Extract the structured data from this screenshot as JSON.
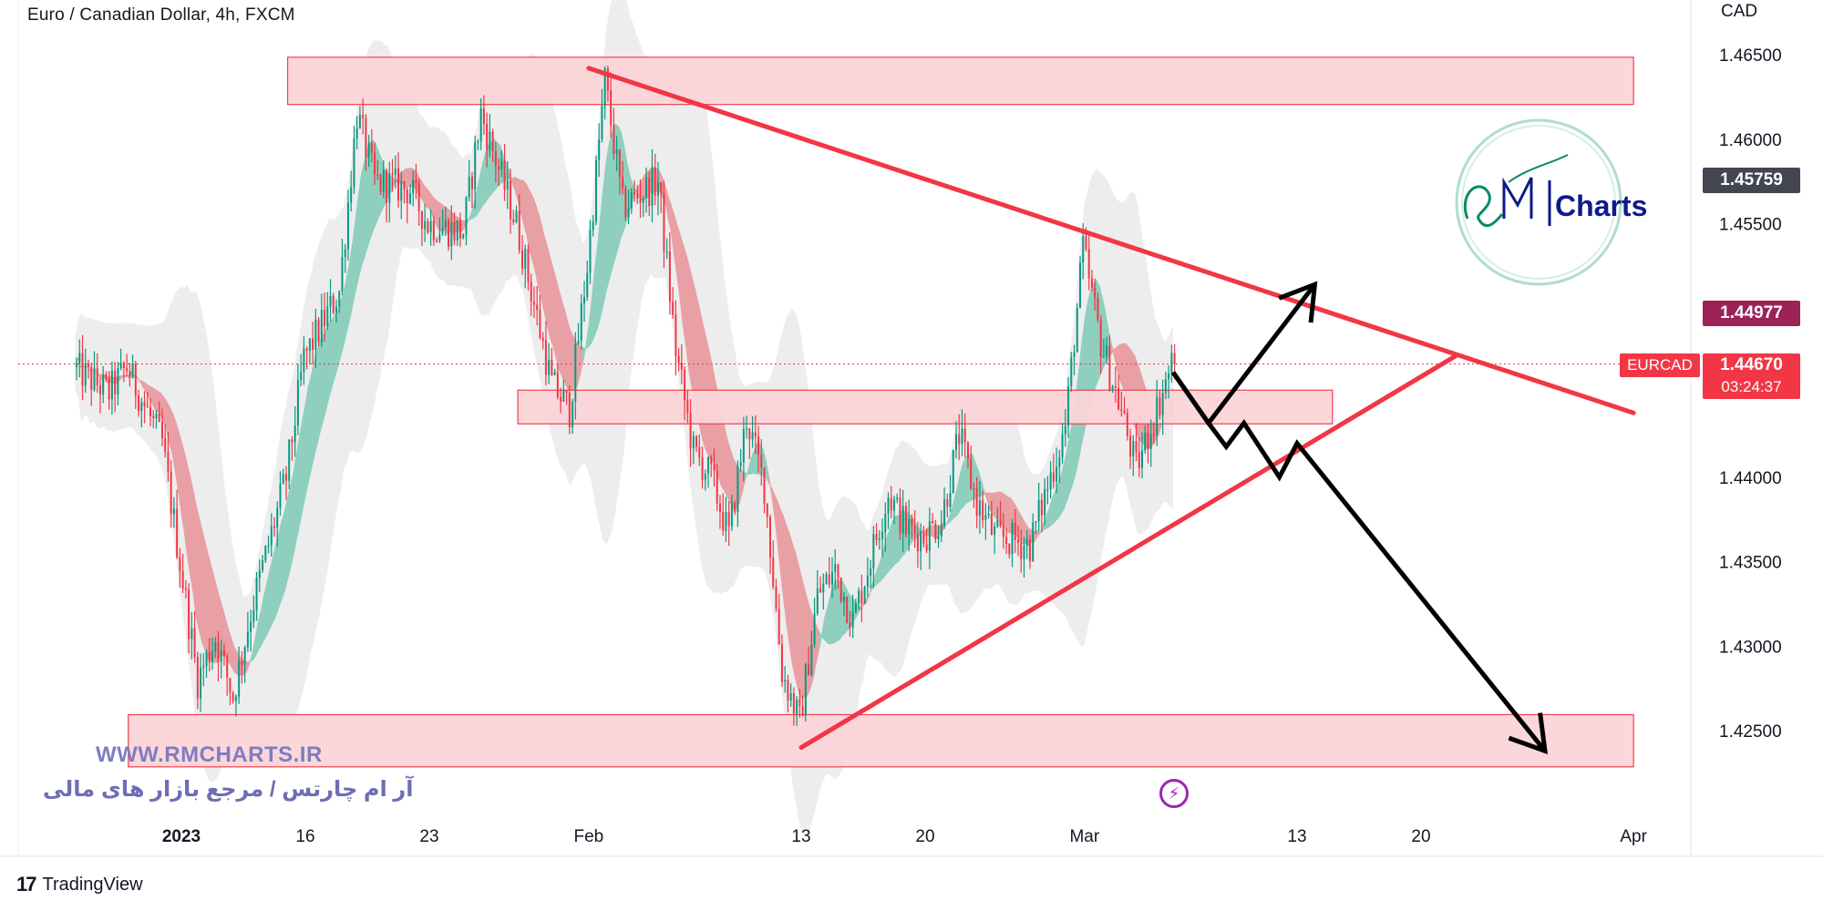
{
  "header": {
    "symbol_title": "Euro / Canadian Dollar, 4h, FXCM",
    "currency": "CAD"
  },
  "price_badges": {
    "top_value": "1.45759",
    "mid_value": "1.44977",
    "symbol": "EURCAD",
    "current_value": "1.44670",
    "countdown": "03:24:37"
  },
  "colors": {
    "bull": "#089981",
    "bear": "#f23645",
    "zone_fill": "#fbd5d9",
    "zone_stroke": "#f23645",
    "trendline": "#f23645",
    "arrow": "#000000",
    "ribbon_up": "#8fcfbe",
    "ribbon_down": "#e8a0a4",
    "band": "#e6e6e6"
  },
  "watermark": {
    "url": "WWW.RMCHARTS.IR",
    "persian": "آر ام چارتس / مرجع بازار های مالی",
    "logo_text": "Charts"
  },
  "footer": {
    "brand": "TradingView",
    "brand_mark": "17"
  },
  "icons": {
    "flash": "lightning-bolt-icon",
    "tradingview": "tradingview-logo-icon"
  },
  "chart_data": {
    "type": "candlestick",
    "title": "Euro / Canadian Dollar, 4h, FXCM",
    "y_unit": "CAD",
    "ylim": [
      1.4215,
      1.4682
    ],
    "y_ticks": [
      "1.46500",
      "1.46000",
      "1.45500",
      "1.45000",
      "1.44500",
      "1.44000",
      "1.43500",
      "1.43000",
      "1.42500"
    ],
    "y_tick_values": [
      1.465,
      1.46,
      1.455,
      1.45,
      1.445,
      1.44,
      1.435,
      1.43,
      1.425
    ],
    "x_ticks": [
      "2023",
      "16",
      "23",
      "Feb",
      "13",
      "20",
      "Mar",
      "13",
      "20",
      "Apr"
    ],
    "x_tick_dates": [
      "2023-01-09",
      "2023-01-16",
      "2023-01-23",
      "2023-02-01",
      "2023-02-13",
      "2023-02-20",
      "2023-03-01",
      "2023-03-13",
      "2023-03-20",
      "2023-04-01"
    ],
    "x_range": [
      "2023-01-03",
      "2023-04-01"
    ],
    "candles_range": [
      "2023-01-03",
      "2023-03-06"
    ],
    "current_price": 1.4467,
    "price_path": [
      [
        "2023-01-03",
        1.4465
      ],
      [
        "2023-01-05",
        1.445
      ],
      [
        "2023-01-06",
        1.4465
      ],
      [
        "2023-01-08",
        1.442
      ],
      [
        "2023-01-10",
        1.428
      ],
      [
        "2023-01-11",
        1.4305
      ],
      [
        "2023-01-12",
        1.427
      ],
      [
        "2023-01-13",
        1.432
      ],
      [
        "2023-01-15",
        1.44
      ],
      [
        "2023-01-16",
        1.447
      ],
      [
        "2023-01-18",
        1.451
      ],
      [
        "2023-01-19",
        1.4615
      ],
      [
        "2023-01-20",
        1.4575
      ],
      [
        "2023-01-22",
        1.457
      ],
      [
        "2023-01-23",
        1.455
      ],
      [
        "2023-01-25",
        1.4545
      ],
      [
        "2023-01-26",
        1.4615
      ],
      [
        "2023-01-28",
        1.455
      ],
      [
        "2023-01-30",
        1.4455
      ],
      [
        "2023-01-31",
        1.444
      ],
      [
        "2023-02-01",
        1.4525
      ],
      [
        "2023-02-02",
        1.4635
      ],
      [
        "2023-02-03",
        1.456
      ],
      [
        "2023-02-05",
        1.4575
      ],
      [
        "2023-02-06",
        1.4475
      ],
      [
        "2023-02-07",
        1.4415
      ],
      [
        "2023-02-08",
        1.44
      ],
      [
        "2023-02-09",
        1.4365
      ],
      [
        "2023-02-10",
        1.4435
      ],
      [
        "2023-02-11",
        1.4395
      ],
      [
        "2023-02-12",
        1.4285
      ],
      [
        "2023-02-13",
        1.4255
      ],
      [
        "2023-02-14",
        1.433
      ],
      [
        "2023-02-15",
        1.4345
      ],
      [
        "2023-02-16",
        1.4315
      ],
      [
        "2023-02-18",
        1.439
      ],
      [
        "2023-02-19",
        1.437
      ],
      [
        "2023-02-20",
        1.4365
      ],
      [
        "2023-02-21",
        1.4375
      ],
      [
        "2023-02-22",
        1.4425
      ],
      [
        "2023-02-23",
        1.4385
      ],
      [
        "2023-02-24",
        1.4365
      ],
      [
        "2023-02-26",
        1.436
      ],
      [
        "2023-02-27",
        1.4395
      ],
      [
        "2023-02-28",
        1.443
      ],
      [
        "2023-03-01",
        1.4535
      ],
      [
        "2023-03-02",
        1.448
      ],
      [
        "2023-03-03",
        1.4445
      ],
      [
        "2023-03-04",
        1.4405
      ],
      [
        "2023-03-05",
        1.4435
      ],
      [
        "2023-03-06",
        1.4467
      ]
    ],
    "zones": [
      {
        "from": "2023-01-15",
        "to": "2023-04-01",
        "low": 1.4627,
        "high": 1.4642
      },
      {
        "from": "2023-01-28",
        "to": "2023-03-15",
        "low": 1.4438,
        "high": 1.4445
      },
      {
        "from": "2023-01-06",
        "to": "2023-04-01",
        "low": 1.4235,
        "high": 1.4253
      }
    ],
    "trendlines": [
      {
        "from": [
          "2023-02-01",
          1.4642
        ],
        "to": [
          "2023-04-01",
          1.4438
        ]
      },
      {
        "from": [
          "2023-02-13",
          1.424
        ],
        "to": [
          "2023-03-22",
          1.4472
        ]
      }
    ],
    "projections": [
      {
        "path": [
          [
            "2023-03-06",
            1.4462
          ],
          [
            "2023-03-08",
            1.4432
          ],
          [
            "2023-03-14",
            1.4514
          ]
        ]
      },
      {
        "path": [
          [
            "2023-03-06",
            1.4462
          ],
          [
            "2023-03-08",
            1.4432
          ],
          [
            "2023-03-09",
            1.4418
          ],
          [
            "2023-03-10",
            1.4432
          ],
          [
            "2023-03-12",
            1.44
          ],
          [
            "2023-03-13",
            1.442
          ],
          [
            "2023-03-27",
            1.4238
          ]
        ]
      }
    ]
  }
}
